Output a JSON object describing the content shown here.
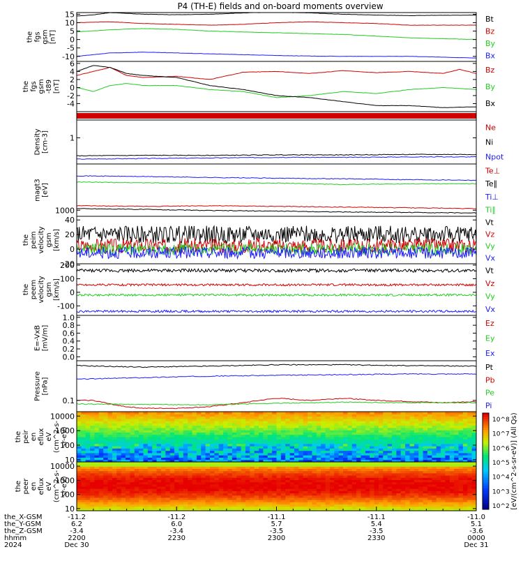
{
  "title": "P4 (TH-E) fields and on-board moments overview",
  "colors": {
    "black": "#000000",
    "red": "#d00000",
    "green": "#22cc22",
    "blue": "#1a1aff",
    "axis": "#000000"
  },
  "chart_data": [
    {
      "type": "line",
      "panel": "fgs",
      "ylabel_lines": [
        "the",
        "fgs",
        "gsm",
        "[nT]"
      ],
      "ylim": [
        -13,
        16
      ],
      "yticks": [
        "15",
        "10",
        "5",
        "0",
        "-5",
        "-10"
      ],
      "ytick_values": [
        15,
        10,
        5,
        0,
        -5,
        -10
      ],
      "legend": [
        {
          "name": "Bt",
          "color": "black"
        },
        {
          "name": "Bz",
          "color": "red"
        },
        {
          "name": "By",
          "color": "green"
        },
        {
          "name": "Bx",
          "color": "blue"
        }
      ],
      "series": [
        {
          "name": "Bt",
          "color": "black",
          "x": [
            0,
            5,
            10,
            15,
            20,
            30,
            40,
            50,
            60,
            70,
            80,
            90,
            100,
            110,
            120
          ],
          "values": [
            14,
            14.6,
            16,
            15.5,
            15,
            14.7,
            15,
            15.8,
            16.2,
            15.8,
            15,
            14.5,
            14.2,
            14.4,
            14.5
          ]
        },
        {
          "name": "Bz",
          "color": "red",
          "x": [
            0,
            10,
            20,
            30,
            40,
            50,
            60,
            70,
            80,
            90,
            100,
            110,
            120
          ],
          "values": [
            10,
            10.5,
            9.5,
            9,
            8.5,
            9,
            10,
            10.5,
            10,
            9.5,
            8.5,
            8.5,
            8.5
          ]
        },
        {
          "name": "By",
          "color": "green",
          "x": [
            0,
            10,
            20,
            30,
            40,
            50,
            60,
            70,
            80,
            90,
            100,
            110,
            120
          ],
          "values": [
            4.5,
            5.8,
            6.5,
            6,
            5,
            4.5,
            4,
            3.5,
            3,
            2,
            1,
            0.5,
            0
          ]
        },
        {
          "name": "Bx",
          "color": "blue",
          "x": [
            0,
            5,
            10,
            20,
            30,
            40,
            50,
            60,
            70,
            80,
            90,
            100,
            110,
            120
          ],
          "values": [
            -10,
            -9,
            -8,
            -7.5,
            -8,
            -8.5,
            -9,
            -9.5,
            -9.8,
            -10,
            -10,
            -10,
            -10.5,
            -11
          ]
        }
      ]
    },
    {
      "type": "line",
      "panel": "fgs-dsl",
      "ylabel_lines": [
        "the",
        "fgs",
        "gsm",
        "-t89",
        "[nT]"
      ],
      "ylim": [
        -6,
        6.5
      ],
      "yticks": [
        "6",
        "4",
        "2",
        "0",
        "-2",
        "-4"
      ],
      "ytick_values": [
        6,
        4,
        2,
        0,
        -2,
        -4
      ],
      "legend": [
        {
          "name": "Bz",
          "color": "red"
        },
        {
          "name": "By",
          "color": "green"
        },
        {
          "name": "Bx",
          "color": "black"
        }
      ],
      "series": [
        {
          "name": "Bz",
          "color": "red",
          "x": [
            0,
            5,
            10,
            15,
            20,
            30,
            40,
            50,
            60,
            70,
            80,
            90,
            100,
            110,
            115,
            120
          ],
          "values": [
            3,
            4,
            5,
            3,
            2.5,
            2.8,
            2,
            3.8,
            4,
            3.5,
            4.2,
            3.7,
            4,
            3.5,
            4.5,
            3.5
          ]
        },
        {
          "name": "By",
          "color": "green",
          "x": [
            0,
            5,
            10,
            15,
            20,
            30,
            40,
            50,
            60,
            70,
            80,
            90,
            100,
            110,
            120
          ],
          "values": [
            0,
            -1,
            0.5,
            1,
            0.5,
            0.5,
            -0.5,
            -1,
            -2.5,
            -2,
            -1,
            -1.5,
            -0.5,
            0,
            -0.5
          ]
        },
        {
          "name": "Bx",
          "color": "black",
          "x": [
            0,
            5,
            10,
            15,
            20,
            30,
            40,
            50,
            60,
            70,
            80,
            90,
            100,
            110,
            120
          ],
          "values": [
            4,
            5.5,
            5,
            3.5,
            3,
            2.5,
            0.5,
            -0.5,
            -2,
            -2.5,
            -3.5,
            -4.5,
            -4.5,
            -5,
            -4.8
          ]
        }
      ]
    },
    {
      "type": "line",
      "panel": "density",
      "ylabel_lines": [
        "Density",
        "[cm-3]"
      ],
      "yscale": "log",
      "ylim": [
        0.2,
        3
      ],
      "yticks": [
        "1"
      ],
      "ytick_values": [
        1
      ],
      "legend": [
        {
          "name": "Ne",
          "color": "red"
        },
        {
          "name": "Ni",
          "color": "black"
        },
        {
          "name": "Npot",
          "color": "blue"
        }
      ],
      "series": [
        {
          "name": "Ni",
          "color": "black",
          "x": [
            0,
            20,
            40,
            60,
            80,
            100,
            120
          ],
          "values": [
            0.33,
            0.34,
            0.34,
            0.35,
            0.35,
            0.36,
            0.36
          ]
        },
        {
          "name": "Npot",
          "color": "blue",
          "x": [
            0,
            20,
            40,
            60,
            80,
            100,
            120
          ],
          "values": [
            0.27,
            0.28,
            0.29,
            0.3,
            0.3,
            0.31,
            0.31
          ]
        }
      ]
    },
    {
      "type": "line",
      "panel": "temperature",
      "ylabel_lines": [
        "magt3",
        "[eV]"
      ],
      "yscale": "log",
      "ylim": [
        700,
        15000
      ],
      "yticks": [
        "1000"
      ],
      "ytick_values": [
        1000
      ],
      "legend": [
        {
          "name": "Te⊥",
          "color": "red"
        },
        {
          "name": "Te∥",
          "color": "black"
        },
        {
          "name": "Ti⊥",
          "color": "blue"
        },
        {
          "name": "Ti∥",
          "color": "green"
        }
      ],
      "series": [
        {
          "name": "Ti⊥",
          "color": "blue",
          "x": [
            0,
            20,
            40,
            60,
            80,
            100,
            120
          ],
          "values": [
            7500,
            7200,
            6800,
            6500,
            6300,
            6000,
            5800
          ]
        },
        {
          "name": "Ti∥",
          "color": "green",
          "x": [
            0,
            20,
            40,
            60,
            80,
            100,
            120
          ],
          "values": [
            5200,
            5000,
            4800,
            4900,
            4500,
            4700,
            4700
          ]
        },
        {
          "name": "Te⊥",
          "color": "red",
          "x": [
            0,
            20,
            40,
            60,
            80,
            100,
            120
          ],
          "values": [
            1300,
            1250,
            1300,
            1250,
            1200,
            1150,
            1100
          ]
        },
        {
          "name": "Te∥",
          "color": "black",
          "x": [
            0,
            20,
            40,
            60,
            80,
            100,
            120
          ],
          "values": [
            1100,
            1050,
            980,
            950,
            900,
            880,
            850
          ]
        }
      ]
    },
    {
      "type": "line",
      "panel": "peim-velocity",
      "ylabel_lines": [
        "the",
        "peim",
        "velocity",
        "gsm",
        "[km/s]"
      ],
      "ylim": [
        -20,
        45
      ],
      "yticks": [
        "40",
        "20",
        "0",
        "-20"
      ],
      "ytick_values": [
        40,
        20,
        0,
        -20
      ],
      "legend": [
        {
          "name": "Vt",
          "color": "black"
        },
        {
          "name": "Vz",
          "color": "red"
        },
        {
          "name": "Vy",
          "color": "green"
        },
        {
          "name": "Vx",
          "color": "blue"
        }
      ],
      "series": [
        {
          "name": "Vt",
          "color": "black",
          "mean": 20,
          "noise": 12
        },
        {
          "name": "Vz",
          "color": "red",
          "mean": 5,
          "noise": 10
        },
        {
          "name": "Vy",
          "color": "green",
          "mean": 0,
          "noise": 8
        },
        {
          "name": "Vx",
          "color": "blue",
          "mean": -5,
          "noise": 8
        }
      ]
    },
    {
      "type": "line",
      "panel": "peem-velocity",
      "ylabel_lines": [
        "the",
        "peem",
        "velocity",
        "gsm",
        "[km/s]"
      ],
      "ylim": [
        -170,
        210
      ],
      "yticks": [
        "200",
        "100",
        "0",
        "-100"
      ],
      "ytick_values": [
        200,
        100,
        0,
        -100
      ],
      "legend": [
        {
          "name": "Vt",
          "color": "black"
        },
        {
          "name": "Vz",
          "color": "red"
        },
        {
          "name": "Vy",
          "color": "green"
        },
        {
          "name": "Vx",
          "color": "blue"
        }
      ],
      "series": [
        {
          "name": "Vt",
          "color": "black",
          "mean": 160,
          "noise": 12
        },
        {
          "name": "Vz",
          "color": "red",
          "mean": 55,
          "noise": 8
        },
        {
          "name": "Vy",
          "color": "green",
          "mean": -20,
          "noise": 8
        },
        {
          "name": "Vx",
          "color": "blue",
          "mean": -140,
          "noise": 8
        }
      ]
    },
    {
      "type": "line",
      "panel": "efield",
      "ylabel_lines": [
        "E=-VxB",
        "[mV/m]"
      ],
      "ylim": [
        -0.1,
        1.05
      ],
      "yticks": [
        "1.0",
        "0.8",
        "0.6",
        "0.4",
        "0.2",
        "0.0"
      ],
      "ytick_values": [
        1,
        0.8,
        0.6,
        0.4,
        0.2,
        0
      ],
      "legend": [
        {
          "name": "Ez",
          "color": "red"
        },
        {
          "name": "Ey",
          "color": "green"
        },
        {
          "name": "Ex",
          "color": "blue"
        }
      ],
      "series": []
    },
    {
      "type": "line",
      "panel": "pressure",
      "ylabel_lines": [
        "Pressure",
        "[nPa]"
      ],
      "yscale": "log",
      "ylim": [
        0.06,
        0.6
      ],
      "yticks": [
        "0.1"
      ],
      "ytick_values": [
        0.1
      ],
      "legend": [
        {
          "name": "Pt",
          "color": "black"
        },
        {
          "name": "Pb",
          "color": "red"
        },
        {
          "name": "Pe",
          "color": "green"
        },
        {
          "name": "Pi",
          "color": "blue"
        }
      ],
      "series": [
        {
          "name": "Pt",
          "color": "black",
          "x": [
            0,
            20,
            40,
            60,
            80,
            100,
            120
          ],
          "values": [
            0.48,
            0.45,
            0.47,
            0.5,
            0.5,
            0.48,
            0.47
          ]
        },
        {
          "name": "Pi",
          "color": "blue",
          "x": [
            0,
            20,
            40,
            60,
            80,
            100,
            120
          ],
          "values": [
            0.26,
            0.28,
            0.3,
            0.31,
            0.32,
            0.33,
            0.33
          ]
        },
        {
          "name": "Pb",
          "color": "red",
          "x": [
            0,
            5,
            10,
            15,
            20,
            30,
            40,
            50,
            60,
            70,
            80,
            90,
            100,
            110,
            120
          ],
          "values": [
            0.1,
            0.1,
            0.085,
            0.075,
            0.07,
            0.07,
            0.075,
            0.09,
            0.11,
            0.1,
            0.11,
            0.1,
            0.095,
            0.09,
            0.095
          ]
        },
        {
          "name": "Pe",
          "color": "green",
          "x": [
            0,
            20,
            40,
            60,
            80,
            100,
            120
          ],
          "values": [
            0.085,
            0.083,
            0.082,
            0.088,
            0.092,
            0.09,
            0.09
          ]
        }
      ]
    },
    {
      "type": "heatmap",
      "panel": "peir-eflux",
      "ylabel_lines": [
        "the",
        "peir",
        "en",
        "eflux",
        "eV",
        "(cm^2-s-",
        "sr-eV)"
      ],
      "yscale": "log",
      "ylim": [
        7,
        20000
      ],
      "yticks": [
        "10000",
        "1000",
        "100",
        "10"
      ],
      "ytick_values": [
        10000,
        1000,
        100,
        10
      ]
    },
    {
      "type": "heatmap",
      "panel": "peer-eflux",
      "ylabel_lines": [
        "the",
        "peer",
        "en",
        "eflux",
        "eV",
        "(cm^2-s-",
        "sr-eV)"
      ],
      "yscale": "log",
      "ylim": [
        7,
        20000
      ],
      "yticks": [
        "10000",
        "1000",
        "100",
        "10"
      ],
      "ytick_values": [
        10000,
        1000,
        100,
        10
      ]
    }
  ],
  "colorbar": {
    "label": "[eV/(cm^2-s-sr-eV)] (All Qs)",
    "ticks": [
      "10^8",
      "10^7",
      "10^6",
      "10^5",
      "10^4",
      "10^3",
      "10^2"
    ]
  },
  "x_axis": {
    "row_labels": [
      "the_X-GSM",
      "the_Y-GSM",
      "the_Z-GSM",
      "hhmm",
      "2024"
    ],
    "columns": [
      {
        "x": 0,
        "X": "-11.2",
        "Y": "6.2",
        "Z": "-3.4",
        "hhmm": "2200",
        "date": "Dec 30"
      },
      {
        "x": 30,
        "X": "-11.2",
        "Y": "6.0",
        "Z": "-3.4",
        "hhmm": "2230",
        "date": ""
      },
      {
        "x": 60,
        "X": "-11.1",
        "Y": "5.7",
        "Z": "-3.5",
        "hhmm": "2300",
        "date": ""
      },
      {
        "x": 90,
        "X": "-11.1",
        "Y": "5.4",
        "Z": "-3.5",
        "hhmm": "2330",
        "date": ""
      },
      {
        "x": 120,
        "X": "-11.0",
        "Y": "5.1",
        "Z": "-3.6",
        "hhmm": "0000",
        "date": "Dec 31"
      }
    ]
  }
}
